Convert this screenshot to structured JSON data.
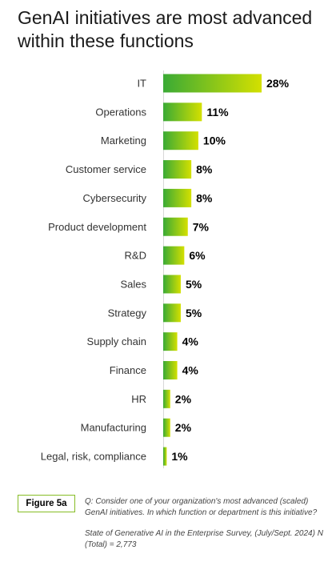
{
  "title": "GenAI initiatives are most advanced within these functions",
  "chart_data": {
    "type": "bar",
    "orientation": "horizontal",
    "categories": [
      "IT",
      "Operations",
      "Marketing",
      "Customer service",
      "Cybersecurity",
      "Product development",
      "R&D",
      "Sales",
      "Strategy",
      "Supply chain",
      "Finance",
      "HR",
      "Manufacturing",
      "Legal, risk, compliance"
    ],
    "values": [
      28,
      11,
      10,
      8,
      8,
      7,
      6,
      5,
      5,
      4,
      4,
      2,
      2,
      1
    ],
    "value_labels": [
      "28%",
      "11%",
      "10%",
      "8%",
      "8%",
      "7%",
      "6%",
      "5%",
      "5%",
      "4%",
      "4%",
      "2%",
      "2%",
      "1%"
    ],
    "unit": "%",
    "xlim": [
      0,
      28
    ],
    "grid": false,
    "colors": {
      "gradient_start": "#3aaa35",
      "gradient_end": "#d4e000"
    }
  },
  "footer": {
    "figure_label": "Figure 5a",
    "question": "Q: Consider one of your organization's most advanced (scaled) GenAI initiatives. In which function or department is this initiative?",
    "source": "State of Generative AI in the Enterprise Survey, (July/Sept. 2024) N (Total) = 2,773",
    "accent_color": "#86bc25"
  }
}
